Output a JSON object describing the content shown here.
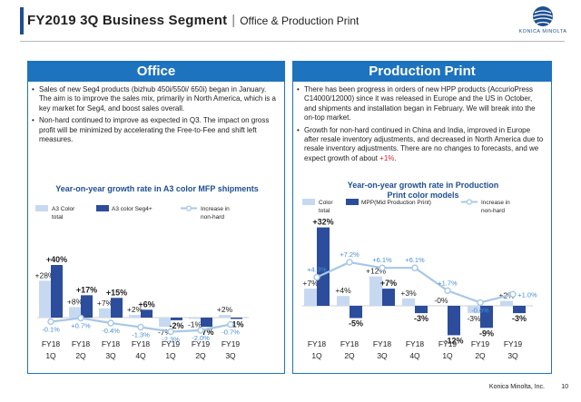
{
  "header": {
    "title": "FY2019 3Q Business Segment",
    "separator": "|",
    "subtitle": "Office & Production Print"
  },
  "logo": {
    "brand": "KONICA MINOLTA"
  },
  "office": {
    "heading": "Office",
    "bullets": [
      "Sales of new Seg4 products (bizhub 450i/550i/ 650i) began in January. The aim is to improve the sales mix, primarily in North America, which is a key market for Seg4, and boost sales overall.",
      "Non-hard continued to improve as expected in Q3. The impact on gross profit will be minimized by accelerating the Free-to-Fee and shift left measures."
    ],
    "chart_title": "Year-on-year growth rate in A3 color MFP shipments"
  },
  "production": {
    "heading": "Production Print",
    "bullet1": "There has been progress in orders of new HPP products (AccurioPress C14000/12000) since it was released in Europe and the US in October, and shipments and installation began in February. We will break into the on-top market.",
    "bullet2_main": "Growth for non-hard continued in China and India, improved in Europe after resale inventory adjustments, and decreased in North America due to resale inventory adjustments. There are no changes to forecasts, and we expect growth of about ",
    "bullet2_highlight": "+1%",
    "bullet2_end": ".",
    "chart_title_line1": "Year-on-year growth rate in Production",
    "chart_title_line2": "Print color models"
  },
  "footer": {
    "company": "Konica Minolta, Inc.",
    "page": "10"
  },
  "colors": {
    "primary": "#1e73be",
    "dark_blue": "#2b4d9b",
    "light_blue": "#c6d9f1",
    "line_blue": "#a7c7e7",
    "title_blue": "#1d4f91",
    "red": "#d6242a"
  },
  "chart_data": [
    {
      "type": "bar",
      "title": "Year-on-year growth rate in A3 color MFP shipments",
      "categories": [
        "FY18 1Q",
        "FY18 2Q",
        "FY18 3Q",
        "FY18 4Q",
        "FY19 1Q",
        "FY19 2Q",
        "FY19 3Q"
      ],
      "category_lines": [
        [
          "FY18",
          "1Q"
        ],
        [
          "FY18",
          "2Q"
        ],
        [
          "FY18",
          "3Q"
        ],
        [
          "FY18",
          "4Q"
        ],
        [
          "FY19",
          "1Q"
        ],
        [
          "FY19",
          "2Q"
        ],
        [
          "FY19",
          "3Q"
        ]
      ],
      "legend": [
        "A3 Color total",
        "A3 color Seg4+",
        "Increase in non-hard"
      ],
      "legend_lines": [
        [
          "A3 Color",
          "total"
        ],
        [
          "A3 color Seg4+"
        ],
        [
          "Increase in",
          "non-hard"
        ]
      ],
      "series": [
        {
          "name": "A3 Color total",
          "kind": "bar",
          "values": [
            28,
            8,
            7,
            2,
            -7,
            -1,
            2
          ],
          "labels": [
            "+28%",
            "+8%",
            "+7%",
            "+2%",
            "-7%",
            "-1%",
            "+2%"
          ]
        },
        {
          "name": "A3 color Seg4+",
          "kind": "bar",
          "values": [
            40,
            17,
            15,
            6,
            -2,
            -7,
            -1
          ],
          "labels": [
            "+40%",
            "+17%",
            "+15%",
            "+6%",
            "-2%",
            "-7%",
            "-1%"
          ]
        },
        {
          "name": "Increase in non-hard",
          "kind": "line",
          "values": [
            -0.1,
            0.7,
            -0.4,
            -1.3,
            -2.3,
            -2.0,
            -0.7
          ],
          "labels": [
            "-0.1%",
            "+0.7%",
            "-0.4%",
            "-1.3%",
            "-2.3%",
            "-2.0%",
            "-0.7%"
          ]
        }
      ]
    },
    {
      "type": "bar",
      "title": "Year-on-year growth rate in Production Print color models",
      "categories": [
        "FY18 1Q",
        "FY18 2Q",
        "FY18 3Q",
        "FY18 4Q",
        "FY19 1Q",
        "FY19 2Q",
        "FY19 3Q"
      ],
      "category_lines": [
        [
          "FY18",
          "1Q"
        ],
        [
          "FY18",
          "2Q"
        ],
        [
          "FY18",
          "3Q"
        ],
        [
          "FY18",
          "4Q"
        ],
        [
          "FY19",
          "1Q"
        ],
        [
          "FY19",
          "2Q"
        ],
        [
          "FY19",
          "3Q"
        ]
      ],
      "legend": [
        "Color total",
        "MPP(Mid Production Print)",
        "Increase in non-hard"
      ],
      "legend_lines": [
        [
          "Color",
          "total"
        ],
        [
          "MPP(Mid Production Print)"
        ],
        [
          "Increase in",
          "non-hard"
        ]
      ],
      "series": [
        {
          "name": "Color total",
          "kind": "bar",
          "values": [
            7,
            4,
            12,
            3,
            0,
            -3,
            2
          ],
          "labels": [
            "+7%",
            "+4%",
            "+12%",
            "+3%",
            "-0%",
            "-3%",
            "+2%"
          ]
        },
        {
          "name": "MPP(Mid Production Print)",
          "kind": "bar",
          "values": [
            32,
            -5,
            7,
            -3,
            -12,
            -9,
            -3
          ],
          "labels": [
            "+32%",
            "-5%",
            "+7%",
            "-3%",
            "-12%",
            "-9%",
            "-3%"
          ]
        },
        {
          "name": "Increase in non-hard",
          "kind": "line",
          "values": [
            4.3,
            7.2,
            6.1,
            6.1,
            1.7,
            -0.6,
            1.0
          ],
          "labels": [
            "+4.3%",
            "+7.2%",
            "+6.1%",
            "+6.1%",
            "+1.7%",
            "-0.6%",
            "+1.0%"
          ]
        }
      ]
    }
  ]
}
